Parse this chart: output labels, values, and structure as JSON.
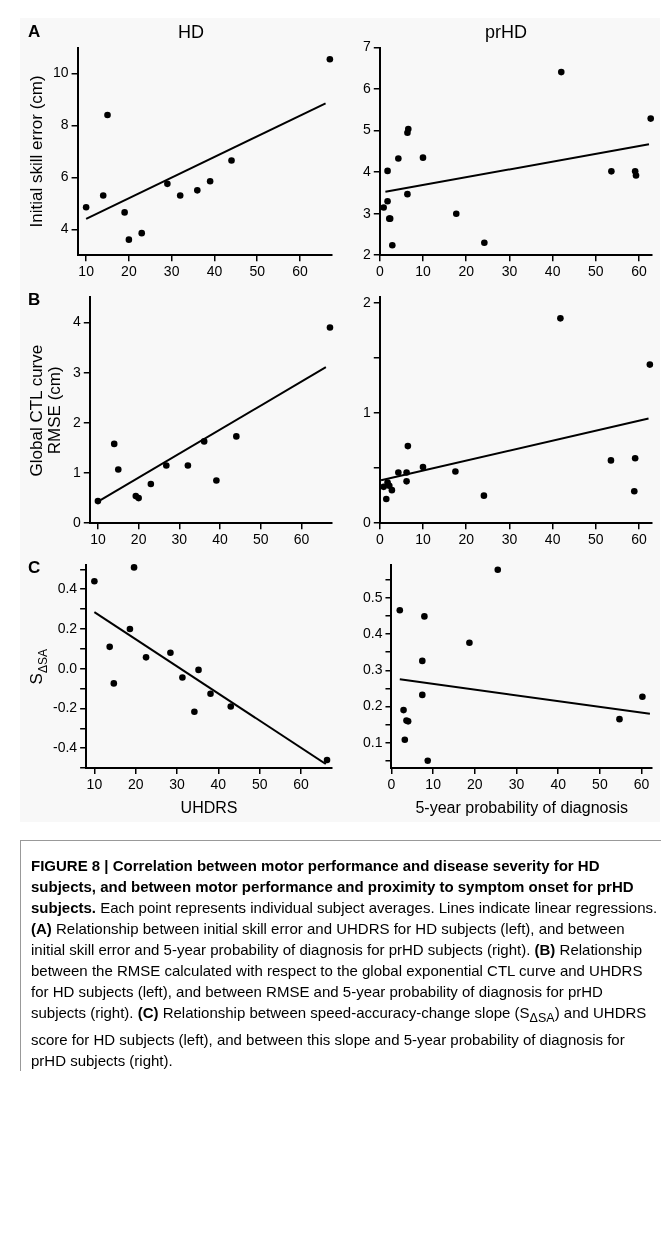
{
  "chart_data": [
    {
      "type": "scatter",
      "title": "HD",
      "ylabel": "Initial skill error (cm)",
      "annotations": [
        "A"
      ],
      "xlim": [
        8,
        67.5
      ],
      "xticks": [
        10,
        20,
        30,
        40,
        50,
        60
      ],
      "ylim": [
        3,
        11
      ],
      "yticks": [
        4,
        6,
        8,
        10
      ],
      "series": [
        {
          "type": "scatter",
          "marker": "circle",
          "color": "#000000",
          "x": [
            10,
            14,
            15,
            19,
            20,
            23,
            29,
            32,
            36,
            39,
            44,
            67
          ],
          "values": [
            4.85,
            5.3,
            8.4,
            4.65,
            3.6,
            3.85,
            5.75,
            5.3,
            5.5,
            5.85,
            6.65,
            10.55
          ]
        },
        {
          "type": "line",
          "color": "#000000",
          "x": [
            10,
            66
          ],
          "values": [
            4.4,
            8.85
          ]
        }
      ]
    },
    {
      "type": "scatter",
      "title": "prHD",
      "xlim": [
        0,
        63
      ],
      "xticks": [
        0,
        10,
        20,
        30,
        40,
        50,
        60
      ],
      "ylim": [
        2,
        7
      ],
      "yticks": [
        2,
        3,
        4,
        5,
        6,
        7
      ],
      "series": [
        {
          "type": "scatter",
          "marker": "circle",
          "color": "#000000",
          "x": [
            0.9,
            1.8,
            1.8,
            2.2,
            2.4,
            2.9,
            4.3,
            6.4,
            6.4,
            6.6,
            10,
            17.7,
            24.2,
            42,
            53.6,
            59.1,
            59.3,
            62.7
          ],
          "values": [
            3.15,
            3.3,
            4.03,
            2.88,
            2.88,
            2.24,
            4.33,
            3.47,
            4.95,
            5.04,
            4.35,
            3.0,
            2.3,
            6.41,
            4.02,
            4.02,
            3.92,
            5.29
          ]
        },
        {
          "type": "line",
          "color": "#000000",
          "x": [
            1.3,
            62.3
          ],
          "values": [
            3.53,
            4.67
          ]
        }
      ]
    },
    {
      "type": "scatter",
      "ylabel": "Global CTL curve\nRMSE (cm)",
      "annotations": [
        "B"
      ],
      "xlim": [
        8,
        67.5
      ],
      "xticks": [
        10,
        20,
        30,
        40,
        50,
        60
      ],
      "ylim": [
        0,
        4.5
      ],
      "yticks": [
        0,
        1,
        2,
        3,
        4
      ],
      "series": [
        {
          "type": "scatter",
          "marker": "circle",
          "color": "#000000",
          "x": [
            10,
            14,
            15,
            19.3,
            20,
            23,
            26.8,
            32.1,
            36.1,
            39.1,
            44,
            67
          ],
          "values": [
            0.44,
            1.58,
            1.07,
            0.54,
            0.5,
            0.78,
            1.15,
            1.15,
            1.63,
            0.85,
            1.73,
            3.9
          ]
        },
        {
          "type": "line",
          "color": "#000000",
          "x": [
            10,
            66
          ],
          "values": [
            0.43,
            3.11
          ]
        }
      ]
    },
    {
      "type": "scatter",
      "xlim": [
        0,
        63
      ],
      "xticks": [
        0,
        10,
        20,
        30,
        40,
        50,
        60
      ],
      "ylim": [
        0,
        2.05
      ],
      "yticks": [
        0,
        {
          "value": 0.5,
          "label": null
        },
        1,
        {
          "value": 1.5,
          "label": null
        },
        2
      ],
      "series": [
        {
          "type": "scatter",
          "marker": "circle",
          "color": "#000000",
          "x": [
            0.9,
            1.5,
            1.8,
            2.2,
            2.8,
            4.3,
            6.2,
            6.2,
            6.5,
            10,
            17.5,
            24.1,
            41.8,
            53.5,
            59.1,
            58.9,
            62.5
          ],
          "values": [
            0.33,
            0.22,
            0.37,
            0.34,
            0.3,
            0.46,
            0.46,
            0.38,
            0.7,
            0.51,
            0.47,
            0.25,
            1.86,
            0.57,
            0.59,
            0.29,
            1.44
          ]
        },
        {
          "type": "line",
          "color": "#000000",
          "x": [
            0.3,
            62.2
          ],
          "values": [
            0.39,
            0.95
          ]
        }
      ]
    },
    {
      "type": "scatter",
      "xlabel": "UHDRS",
      "ylabel": "S$_{ΔSA}$",
      "annotations": [
        "C"
      ],
      "xlim": [
        8,
        67.5
      ],
      "xticks": [
        10,
        20,
        30,
        40,
        50,
        60
      ],
      "ylim": [
        -0.5,
        0.52
      ],
      "yticks": [
        {
          "value": -0.5,
          "label": null
        },
        -0.4,
        {
          "value": -0.3,
          "label": null
        },
        -0.2,
        {
          "value": -0.1,
          "label": null
        },
        {
          "value": 0,
          "label": "0.0"
        },
        {
          "value": 0.1,
          "label": null
        },
        0.2,
        {
          "value": 0.3,
          "label": null
        },
        0.4,
        {
          "value": 0.5,
          "label": null
        }
      ],
      "series": [
        {
          "type": "scatter",
          "marker": "circle",
          "color": "#000000",
          "x": [
            10,
            19.6,
            13.7,
            14.7,
            18.6,
            22.5,
            28.4,
            31.3,
            35.2,
            34.2,
            38.1,
            43,
            66.3
          ],
          "values": [
            0.44,
            0.51,
            0.11,
            -0.074,
            0.2,
            0.057,
            0.08,
            -0.044,
            -0.006,
            -0.217,
            -0.126,
            -0.19,
            -0.46
          ]
        },
        {
          "type": "line",
          "color": "#000000",
          "x": [
            10,
            66
          ],
          "values": [
            0.285,
            -0.48
          ]
        }
      ]
    },
    {
      "type": "scatter",
      "xlabel": "5-year probability of diagnosis",
      "xlim": [
        0,
        62.5
      ],
      "xticks": [
        0,
        10,
        20,
        30,
        40,
        50,
        60
      ],
      "ylim": [
        0.03,
        0.59
      ],
      "yticks": [
        {
          "value": 0.05,
          "label": null
        },
        0.1,
        {
          "value": 0.15,
          "label": null
        },
        0.2,
        {
          "value": 0.25,
          "label": null
        },
        0.3,
        {
          "value": 0.35,
          "label": null
        },
        0.4,
        {
          "value": 0.45,
          "label": null
        },
        0.5,
        {
          "value": 0.55,
          "label": null
        }
      ],
      "series": [
        {
          "type": "scatter",
          "marker": "circle",
          "color": "#000000",
          "x": [
            2,
            7.9,
            25.5,
            18.7,
            7.4,
            7.4,
            2.9,
            3.6,
            4,
            3.2,
            8.7,
            54.7,
            60.2
          ],
          "values": [
            0.466,
            0.449,
            0.578,
            0.376,
            0.326,
            0.232,
            0.19,
            0.161,
            0.159,
            0.108,
            0.05,
            0.165,
            0.227
          ]
        },
        {
          "type": "line",
          "color": "#000000",
          "x": [
            2,
            62
          ],
          "values": [
            0.275,
            0.18
          ]
        }
      ]
    },
    {
      "type": "other",
      "annotations": [
        "FIGURE 8 | Correlation between motor performance and disease severity for HD subjects, and between motor performance and proximity to symptom onset for prHD subjects.",
        "Each point represents individual subject averages. Lines indicate linear regressions.",
        "(A)",
        "Relationship between initial skill error and UHDRS for HD subjects (left), and between initial skill error and 5-year probability of diagnosis for prHD subjects (right).",
        "(B)",
        "Relationship between the RMSE calculated with respect to the global exponential CTL curve and UHDRS for HD subjects (left), and between RMSE and 5-year probability of diagnosis for prHD subjects (right).",
        "(C)",
        "Relationship between speed-accuracy-change slope (S$_{ΔSA}$) and UHDRS score for HD subjects (left), and between this slope and 5-year probability of diagnosis for prHD subjects (right)."
      ]
    }
  ]
}
